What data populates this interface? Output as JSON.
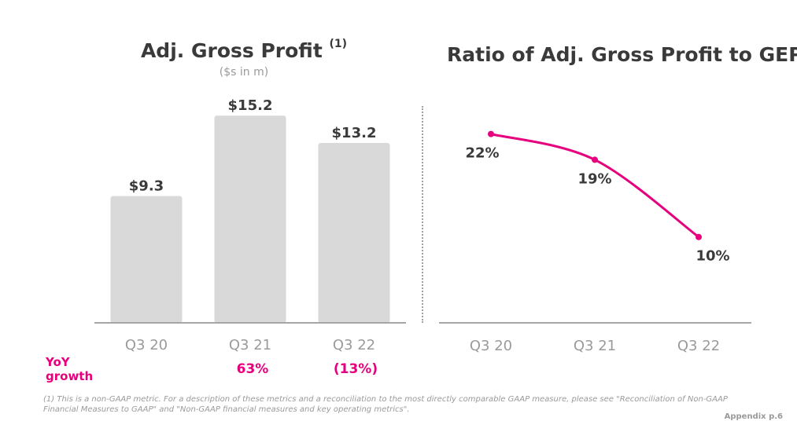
{
  "left": {
    "title": "Adj. Gross Profit",
    "title_note": "(1)",
    "subtitle": "($s in m)"
  },
  "right": {
    "title": "Ratio of Adj. Gross Profit to GEP"
  },
  "yoy": {
    "label_line1": "YoY",
    "label_line2": "growth",
    "values": [
      "",
      "63%",
      "(13%)"
    ]
  },
  "footnote": "(1) This is a non-GAAP metric. For a description of these metrics and a reconciliation to the most directly comparable GAAP measure, please see \"Reconciliation of Non-GAAP Financial Measures to GAAP\" and \"Non-GAAP financial measures and key operating metrics\".",
  "appendix": "Appendix p.6",
  "colors": {
    "bar": "#d9d9d9",
    "line": "#e6007e",
    "axis": "#a6a6a6",
    "text": "#3a3a3a",
    "tick": "#9a9a9a"
  },
  "chart_data": [
    {
      "type": "bar",
      "categories": [
        "Q3 20",
        "Q3 21",
        "Q3 22"
      ],
      "values": [
        9.3,
        15.2,
        13.2
      ],
      "data_labels": [
        "$9.3",
        "$15.2",
        "$13.2"
      ],
      "title": "Adj. Gross Profit (1)",
      "subtitle": "($s in m)",
      "xlabel": "",
      "ylabel": "",
      "ylim": [
        0,
        17
      ],
      "grid": false
    },
    {
      "type": "line",
      "categories": [
        "Q3 20",
        "Q3 21",
        "Q3 22"
      ],
      "values": [
        22,
        19,
        10
      ],
      "data_labels": [
        "22%",
        "19%",
        "10%"
      ],
      "title": "Ratio of Adj. Gross Profit to GEP",
      "xlabel": "",
      "ylabel": "",
      "ylim": [
        0,
        27
      ],
      "grid": false
    }
  ]
}
